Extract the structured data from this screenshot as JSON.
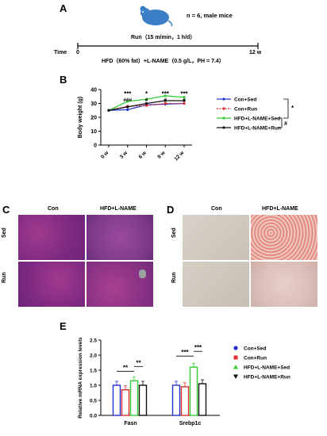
{
  "panel_a": {
    "label": "A",
    "mice_note": "n = 6, male mice",
    "run_protocol": "Run（15 m/min，1 h/d）",
    "time_label": "Time",
    "start": "0",
    "end": "12 w",
    "diet": "HFD（60% fat）+L-NAME（0.5 g/L，PH = 7.4）"
  },
  "panel_b": {
    "label": "B",
    "sig_top": [
      "***",
      "*",
      "***",
      "***"
    ],
    "sig_hash": [
      "###",
      "#",
      "#",
      "#"
    ],
    "legend_sig": [
      "*",
      "#"
    ]
  },
  "panel_c": {
    "label": "C",
    "col_con": "Con",
    "col_hfd": "HFD+L-NAME",
    "row_sed": "Sed",
    "row_run": "Run"
  },
  "panel_d": {
    "label": "D",
    "col_con": "Con",
    "col_hfd": "HFD+L-NAME",
    "row_sed": "Sed",
    "row_run": "Run"
  },
  "panel_e": {
    "label": "E",
    "sig": [
      "**",
      "**",
      "***",
      "***"
    ]
  },
  "chart_data": [
    {
      "type": "line",
      "ylabel": "Body weight (g)",
      "x": [
        "0 w",
        "3 w",
        "6 w",
        "9 w",
        "12 w"
      ],
      "ylim": [
        0,
        40
      ],
      "yticks": [
        "0",
        "10",
        "20",
        "30",
        "40"
      ],
      "legend_position": "right",
      "series": [
        {
          "name": "Con+Sed",
          "color": "#2233cc",
          "values": [
            25,
            25.5,
            29,
            29.5,
            30
          ]
        },
        {
          "name": "Con+Run",
          "color": "#e03030",
          "values": [
            25,
            28,
            28.5,
            30,
            30
          ]
        },
        {
          "name": "HFD+L-NAME+Sed",
          "color": "#33cc33",
          "values": [
            25,
            31.5,
            33,
            35.5,
            34.5
          ]
        },
        {
          "name": "HFD+L-NAME+Run",
          "color": "#111111",
          "values": [
            25,
            27.5,
            30,
            32,
            32
          ]
        }
      ]
    },
    {
      "type": "bar",
      "ylabel": "Relative mRNA expression levels",
      "categories": [
        "Fasn",
        "Srebp1c"
      ],
      "ylim": [
        0,
        2.5
      ],
      "yticks": [
        "0.0",
        "0.5",
        "1.0",
        "1.5",
        "2.0",
        "2.5"
      ],
      "legend_position": "right",
      "series": [
        {
          "name": "Con+Sed",
          "color": "#2233cc",
          "values": [
            1.0,
            1.0
          ]
        },
        {
          "name": "Con+Run",
          "color": "#e03030",
          "values": [
            0.85,
            0.95
          ]
        },
        {
          "name": "HFD+L-NAME+Sed",
          "color": "#33cc33",
          "values": [
            1.15,
            1.6
          ]
        },
        {
          "name": "HFD+L-NAME+Run",
          "color": "#111111",
          "values": [
            1.0,
            1.05
          ]
        }
      ]
    }
  ]
}
